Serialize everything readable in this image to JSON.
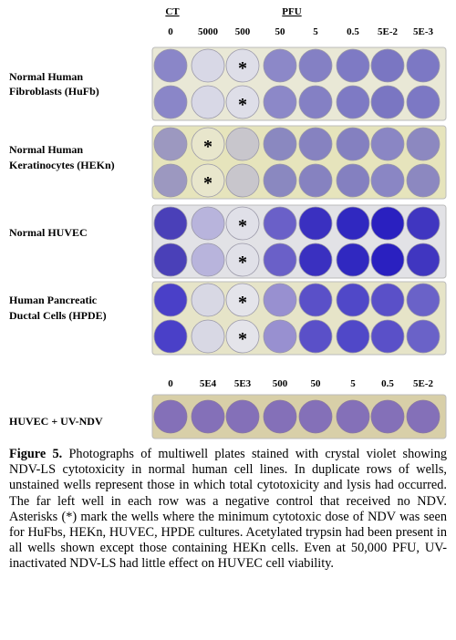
{
  "header": {
    "ct": "CT",
    "pfu": "PFU",
    "columns": [
      "0",
      "5000",
      "500",
      "50",
      "5",
      "0.5",
      "5E-2",
      "5E-3"
    ]
  },
  "plates": [
    {
      "label": [
        "Normal Human",
        "Fibroblasts (HuFb)"
      ],
      "asterisks": [
        "*",
        "*"
      ]
    },
    {
      "label": [
        "Normal Human",
        "Keratinocytes (HEKn)"
      ],
      "asterisks": [
        "*",
        "*"
      ]
    },
    {
      "label": [
        "Normal HUVEC"
      ],
      "asterisks": [
        "*",
        "*"
      ]
    },
    {
      "label": [
        "Human Pancreatic",
        "Ductal Cells (HPDE)"
      ],
      "asterisks": [
        "*",
        "*"
      ]
    }
  ],
  "uv_plate": {
    "columns": [
      "0",
      "5E4",
      "5E3",
      "500",
      "50",
      "5",
      "0.5",
      "5E-2"
    ],
    "label": "HUVEC + UV-NDV"
  },
  "caption": {
    "label": "Figure 5.",
    "text": "Photographs of multiwell plates stained with crystal violet showing NDV-LS cytotoxicity in normal human cell lines. In duplicate rows of wells, unstained wells represent those in which total cytotoxicity and lysis had occurred. The far left well in each row was a negative control that received no NDV. Asterisks (*) mark the wells where the minimum cytotoxic dose of NDV was seen for HuFbs, HEKn, HUVEC, HPDE cultures. Acetylated trypsin had been present in all wells shown except those containing HEKn cells. Even at 50,000 PFU, UV-inactivated NDV-LS had little effect on HUVEC cell viability."
  }
}
